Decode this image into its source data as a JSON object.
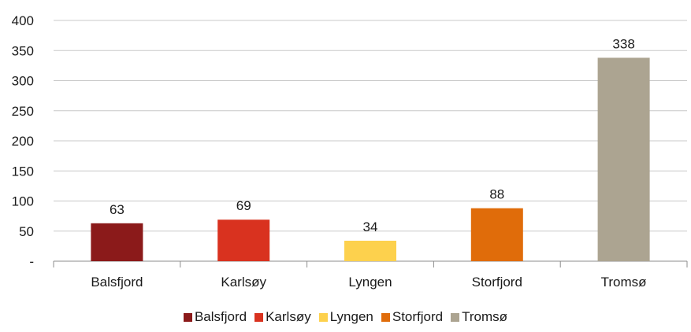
{
  "chart_data": {
    "type": "bar",
    "categories": [
      "Balsfjord",
      "Karlsøy",
      "Lyngen",
      "Storfjord",
      "Tromsø"
    ],
    "values": [
      63,
      69,
      34,
      88,
      338
    ],
    "colors": [
      "#8b1a1a",
      "#d9321f",
      "#fdd14d",
      "#e06c0a",
      "#aca491"
    ],
    "ylim": [
      0,
      400
    ],
    "yticks": [
      0,
      50,
      100,
      150,
      200,
      250,
      300,
      350,
      400
    ],
    "ytick_labels": [
      "-",
      "50",
      "100",
      "150",
      "200",
      "250",
      "300",
      "350",
      "400"
    ],
    "grid": true,
    "legend_position": "bottom",
    "data_labels": [
      "63",
      "69",
      "34",
      "88",
      "338"
    ]
  }
}
